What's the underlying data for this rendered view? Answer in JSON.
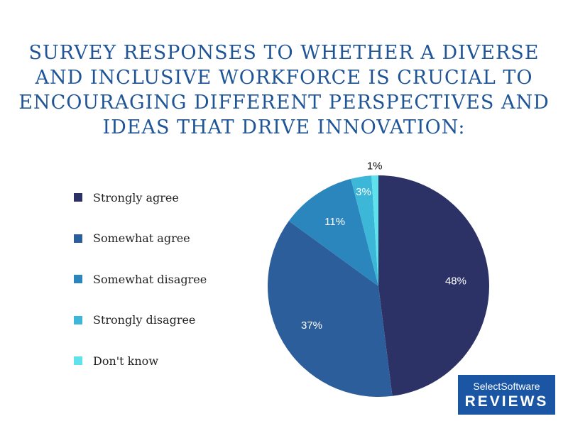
{
  "chart_data": {
    "type": "pie",
    "title": "Survey responses to whether a diverse and inclusive workforce is crucial to encouraging different perspectives and ideas that drive innovation:",
    "series": [
      {
        "categories": [
          "Strongly agree",
          "Somewhat agree",
          "Somewhat disagree",
          "Strongly disagree",
          "Don't know"
        ],
        "values": [
          48,
          37,
          11,
          3,
          1
        ],
        "labels": [
          "48%",
          "37%",
          "11%",
          "3%",
          "1%"
        ]
      }
    ],
    "colors": [
      "#2c3266",
      "#2d5e9c",
      "#2b86be",
      "#3cb7d8",
      "#5fe2ec"
    ],
    "legend_position": "left",
    "start": "12 o'clock, clockwise"
  },
  "brand": {
    "line1": "SelectSoftware",
    "line2": "REVIEWS"
  }
}
